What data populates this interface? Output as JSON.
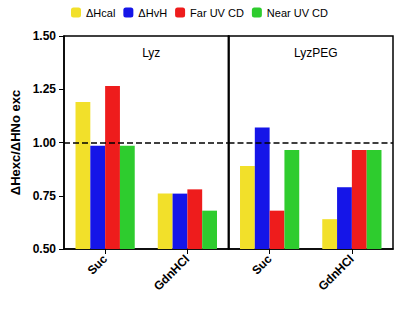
{
  "chart_data": {
    "type": "bar",
    "y_label": "ΔHexc/ΔHNo exc",
    "ylim": [
      0.5,
      1.5
    ],
    "yticks": [
      {
        "value": 0.5,
        "label": "0.50"
      },
      {
        "value": 0.75,
        "label": "0.75"
      },
      {
        "value": 1,
        "label": "1.00"
      },
      {
        "value": 1.25,
        "label": "1.25"
      },
      {
        "value": 1.5,
        "label": "1.50"
      }
    ],
    "reference_line": 1,
    "legend": "top",
    "series": [
      {
        "name": "ΔHcal",
        "color": "#f2e02a"
      },
      {
        "name": "ΔHvH",
        "color": "#1515e8"
      },
      {
        "name": "Far UV CD",
        "color": "#ee1c1c"
      },
      {
        "name": "Near UV CD",
        "color": "#2ecc2e"
      }
    ],
    "panels": [
      {
        "title": "Lyz",
        "categories": [
          "Suc",
          "GdnHCl"
        ],
        "values": [
          [
            1.19,
            0.76
          ],
          [
            0.985,
            0.76
          ],
          [
            1.265,
            0.78
          ],
          [
            0.985,
            0.68
          ]
        ]
      },
      {
        "title": "LyzPEG",
        "categories": [
          "Suc",
          "GdnHCl"
        ],
        "values": [
          [
            0.89,
            0.64
          ],
          [
            1.07,
            0.79
          ],
          [
            0.68,
            0.965
          ],
          [
            0.965,
            0.965
          ]
        ]
      }
    ]
  }
}
